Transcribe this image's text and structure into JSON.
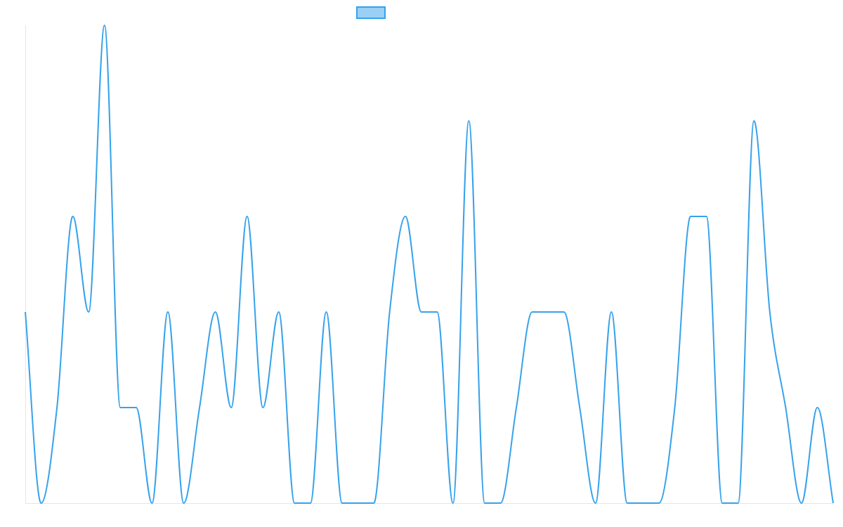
{
  "chart_data": {
    "type": "line",
    "title": "",
    "xlabel": "",
    "ylabel": "",
    "legend": {
      "position": "top-center",
      "entries": [
        {
          "label": "",
          "fill": "#9ad0f5",
          "stroke": "#36a2eb"
        }
      ]
    },
    "grid": false,
    "x": [
      0,
      1,
      2,
      3,
      4,
      5,
      6,
      7,
      8,
      9,
      10,
      11,
      12,
      13,
      14,
      15,
      16,
      17,
      18,
      19,
      20,
      21,
      22,
      23,
      24,
      25,
      26,
      27,
      28,
      29,
      30,
      31,
      32,
      33,
      34,
      35,
      36,
      37,
      38,
      39,
      40,
      41,
      42,
      43,
      44,
      45,
      46,
      47,
      48,
      49,
      50,
      51
    ],
    "ylim": [
      0,
      5
    ],
    "series": [
      {
        "name": "",
        "color": "#36a2eb",
        "values": [
          2,
          0,
          1,
          3,
          2,
          5,
          1,
          1,
          0,
          2,
          0,
          1,
          2,
          1,
          3,
          1,
          2,
          0,
          0,
          2,
          0,
          0,
          0,
          2,
          3,
          2,
          2,
          0,
          4,
          0,
          0,
          1,
          2,
          2,
          2,
          1,
          0,
          2,
          0,
          0,
          0,
          1,
          3,
          3,
          0,
          0,
          4,
          2,
          1,
          0,
          1,
          0
        ]
      }
    ]
  }
}
